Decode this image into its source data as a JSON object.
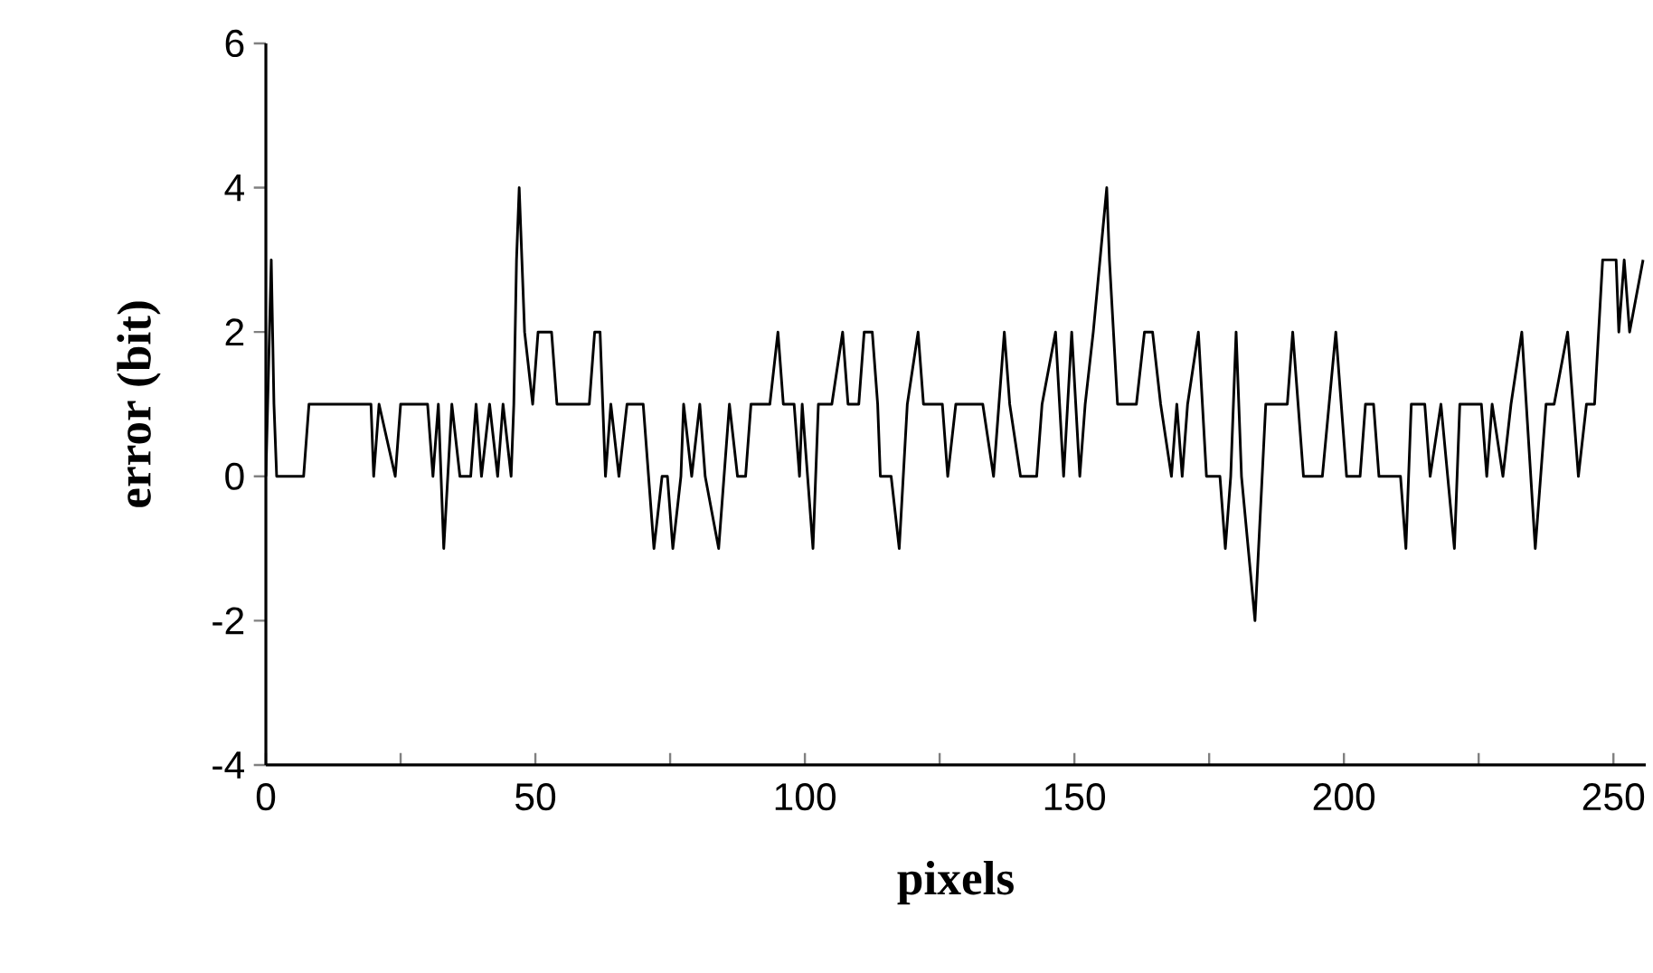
{
  "chart_data": {
    "type": "line",
    "xlabel": "pixels",
    "ylabel": "error (bit)",
    "xlim": [
      0,
      256
    ],
    "ylim": [
      -4,
      6
    ],
    "xticks": [
      0,
      {
        "value": 25,
        "label": null
      },
      50,
      {
        "value": 75,
        "label": null
      },
      100,
      {
        "value": 125,
        "label": null
      },
      150,
      {
        "value": 175,
        "label": null
      },
      200,
      {
        "value": 225,
        "label": null
      },
      250
    ],
    "yticks": [
      -4,
      -2,
      0,
      2,
      4,
      6
    ],
    "grid": false,
    "marker": "none",
    "line_style": "solid",
    "series": [
      {
        "color": "#000000",
        "x": [
          0,
          1,
          1.5,
          2,
          7,
          8,
          9,
          19.5,
          20,
          21,
          24,
          25,
          30,
          31,
          32,
          33,
          34.5,
          36,
          38,
          39,
          40,
          41.5,
          43,
          44,
          45.5,
          46,
          46.5,
          47,
          47.5,
          48,
          49.5,
          50.5,
          53,
          54,
          60,
          61,
          62,
          62.5,
          63,
          64,
          65.5,
          67,
          68,
          70,
          71,
          72,
          73.5,
          74.5,
          75.5,
          77,
          77.5,
          79,
          80.5,
          81.5,
          84,
          85,
          86,
          87.5,
          89,
          90,
          93.5,
          95,
          96,
          98,
          99,
          99.5,
          100.5,
          101.5,
          102.5,
          105,
          107,
          108,
          110,
          111,
          112.5,
          113.5,
          114,
          116,
          117.5,
          119,
          121,
          122,
          125.5,
          126.5,
          128,
          133,
          135,
          137,
          138,
          140,
          143,
          144,
          146.5,
          148,
          149.5,
          151,
          152,
          153.5,
          156,
          156.5,
          158,
          161.5,
          163,
          164.5,
          166,
          168,
          169,
          170,
          171,
          173,
          174.5,
          177,
          178,
          179,
          180,
          181,
          183.5,
          185.5,
          189.5,
          190.5,
          191.5,
          192.5,
          196,
          198.5,
          199.5,
          200.5,
          203,
          204,
          205.5,
          206.5,
          210.5,
          211.5,
          212.5,
          215,
          216,
          218,
          220.5,
          221.5,
          225.5,
          226.5,
          227.5,
          229.5,
          231,
          233,
          235.5,
          237.5,
          239,
          241.5,
          242.5,
          243.5,
          245,
          246.5,
          248,
          250.5,
          251,
          252,
          253,
          255.5
        ],
        "values": [
          0,
          3,
          1,
          0,
          0,
          1,
          1,
          1,
          0,
          1,
          0,
          1,
          1,
          0,
          1,
          -1,
          1,
          0,
          0,
          1,
          0,
          1,
          0,
          1,
          0,
          1,
          3,
          4,
          3,
          2,
          1,
          2,
          2,
          1,
          1,
          2,
          2,
          1,
          0,
          1,
          0,
          1,
          1,
          1,
          0,
          -1,
          0,
          0,
          -1,
          0,
          1,
          0,
          1,
          0,
          -1,
          0,
          1,
          0,
          0,
          1,
          1,
          2,
          1,
          1,
          0,
          1,
          0,
          -1,
          1,
          1,
          2,
          1,
          1,
          2,
          2,
          1,
          0,
          0,
          -1,
          1,
          2,
          1,
          1,
          0,
          1,
          1,
          0,
          2,
          1,
          0,
          0,
          1,
          2,
          0,
          2,
          0,
          1,
          2,
          4,
          3,
          1,
          1,
          2,
          2,
          1,
          0,
          1,
          0,
          1,
          2,
          0,
          0,
          -1,
          0,
          2,
          0,
          -2,
          1,
          1,
          2,
          1,
          0,
          0,
          2,
          1,
          0,
          0,
          1,
          1,
          0,
          0,
          -1,
          1,
          1,
          0,
          1,
          -1,
          1,
          1,
          0,
          1,
          0,
          1,
          2,
          -1,
          1,
          1,
          2,
          1,
          0,
          1,
          1,
          3,
          3,
          2,
          3,
          2,
          3
        ]
      }
    ]
  }
}
